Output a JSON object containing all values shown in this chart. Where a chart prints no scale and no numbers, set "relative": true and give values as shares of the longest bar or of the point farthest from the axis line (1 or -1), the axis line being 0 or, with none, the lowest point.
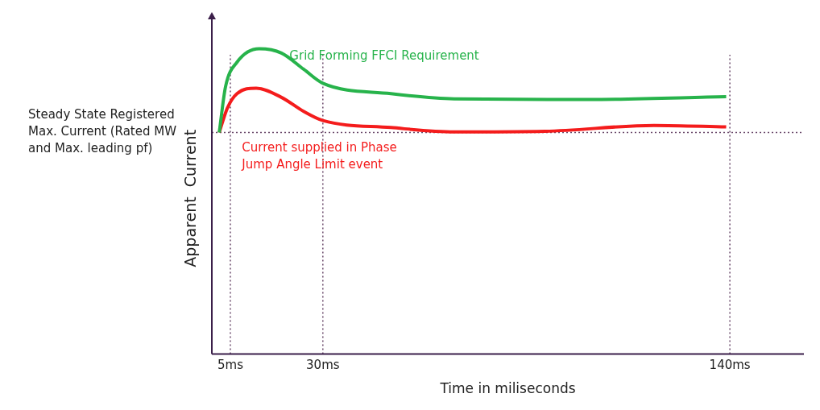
{
  "chart_data": {
    "type": "line",
    "relative": true,
    "xlabel": "Time in miliseconds",
    "ylabel": "Apparent  Current",
    "xlim": [
      0,
      160
    ],
    "xticks": [
      {
        "value": 5,
        "label": "5ms"
      },
      {
        "value": 30,
        "label": "30ms"
      },
      {
        "value": 140,
        "label": "140ms"
      }
    ],
    "series": [
      {
        "name": "Grid Forming FFCI Requirement",
        "color": "#27b34b",
        "x": [
          2,
          3.7,
          6.8,
          12.8,
          18.8,
          24.8,
          30,
          48.4,
          65.5,
          102,
          139
        ],
        "values": [
          0.726,
          0.876,
          0.956,
          1,
          0.986,
          0.933,
          0.887,
          0.853,
          0.836,
          0.834,
          0.843
        ]
      },
      {
        "name": "Current supplied in Phase Jump Angle Limit event",
        "color": "#f41c1c",
        "x": [
          2,
          4.2,
          6.8,
          12,
          18.8,
          24.8,
          30,
          48.4,
          65.5,
          90,
          119.5,
          139
        ],
        "values": [
          0.726,
          0.806,
          0.853,
          0.871,
          0.841,
          0.795,
          0.765,
          0.742,
          0.728,
          0.73,
          0.749,
          0.744
        ]
      }
    ],
    "ref_lines": [
      {
        "axis": "y",
        "value": 0.726,
        "label": "Steady State Registered Max. Current (Rated MW and Max. leading pf)",
        "color": "#6b4a6b",
        "line_style": "dotted"
      },
      {
        "axis": "x",
        "value": 5,
        "color": "#6b4a6b",
        "line_style": "dotted"
      },
      {
        "axis": "x",
        "value": 30,
        "color": "#6b4a6b",
        "line_style": "dotted"
      },
      {
        "axis": "x",
        "value": 140,
        "color": "#6b4a6b",
        "line_style": "dotted"
      }
    ],
    "legend": false,
    "grid": false,
    "marker": "none",
    "line_style": "solid"
  }
}
